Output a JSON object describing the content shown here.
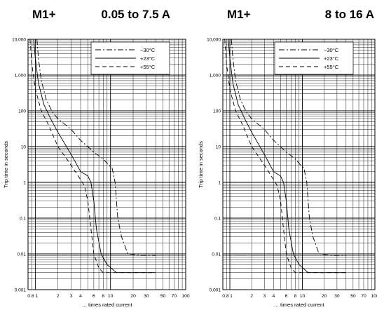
{
  "charts_colors": {
    "line": "#000000",
    "grid": "#000000",
    "background": "#ffffff"
  },
  "chart_data": [
    {
      "type": "line",
      "title": "M1+",
      "subtitle": "0.05 to 7.5 A",
      "xlabel": "… times rated current",
      "ylabel": "Trip time in seconds",
      "x_scale": "log",
      "y_scale": "log",
      "xlim": [
        0.8,
        100
      ],
      "ylim": [
        0.001,
        10000
      ],
      "x_ticks": [
        "0.8",
        "1",
        "2",
        "3",
        "4",
        "6",
        "8",
        "10",
        "20",
        "30",
        "50",
        "70",
        "100"
      ],
      "y_ticks": [
        "0.001",
        "0.01",
        "0.1",
        "1",
        "10",
        "100",
        "1,000",
        "10,000"
      ],
      "grid": true,
      "legend_position": "top-right",
      "series": [
        {
          "name": "−30°C",
          "style": "dash-dot",
          "x": [
            1.05,
            1.1,
            1.2,
            1.4,
            1.7,
            2.0,
            3.0,
            4.0,
            6.0,
            8.0,
            9.5,
            10.5,
            11.5,
            12.5,
            14.0,
            17.0,
            25.0,
            40.0
          ],
          "y": [
            10000,
            3000,
            700,
            200,
            90,
            60,
            30,
            15,
            7,
            4.5,
            3,
            2.5,
            1,
            0.1,
            0.03,
            0.01,
            0.009,
            0.009
          ]
        },
        {
          "name": "+23°C",
          "style": "solid",
          "x": [
            0.95,
            1.0,
            1.1,
            1.3,
            1.6,
            2.0,
            3.0,
            4.0,
            5.0,
            5.5,
            6.0,
            6.5,
            7.5,
            9.0,
            12.0,
            20.0,
            40.0
          ],
          "y": [
            10000,
            3000,
            600,
            150,
            60,
            25,
            6,
            2,
            1.5,
            1,
            0.3,
            0.05,
            0.01,
            0.005,
            0.003,
            0.003,
            0.003
          ]
        },
        {
          "name": "+55°C",
          "style": "dashed",
          "x": [
            0.85,
            0.9,
            1.0,
            1.2,
            1.5,
            2.0,
            3.0,
            4.0,
            4.5,
            5.0,
            5.5,
            6.0,
            7.0,
            8.0,
            10.0,
            20.0,
            40.0
          ],
          "y": [
            10000,
            2000,
            400,
            100,
            40,
            10,
            3,
            1.2,
            0.8,
            0.3,
            0.05,
            0.01,
            0.004,
            0.003,
            0.003,
            0.003,
            0.003
          ]
        }
      ]
    },
    {
      "type": "line",
      "title": "M1+",
      "subtitle": "8 to 16 A",
      "xlabel": "… times rated current",
      "ylabel": "Trip time in seconds",
      "x_scale": "log",
      "y_scale": "log",
      "xlim": [
        0.8,
        100
      ],
      "ylim": [
        0.001,
        10000
      ],
      "x_ticks": [
        "0.8",
        "1",
        "2",
        "3",
        "4",
        "6",
        "8",
        "10",
        "20",
        "30",
        "50",
        "70",
        "100"
      ],
      "y_ticks": [
        "0.001",
        "0.01",
        "0.1",
        "1",
        "10",
        "100",
        "1,000",
        "10,000"
      ],
      "grid": true,
      "legend_position": "top-right",
      "series": [
        {
          "name": "−30°C",
          "style": "dash-dot",
          "x": [
            1.05,
            1.1,
            1.2,
            1.4,
            1.7,
            2.0,
            3.0,
            4.0,
            6.0,
            8.0,
            9.5,
            10.5,
            11.5,
            12.5,
            14.0,
            17.0,
            25.0,
            40.0
          ],
          "y": [
            10000,
            3000,
            700,
            200,
            90,
            60,
            30,
            15,
            7,
            4.5,
            3,
            2.5,
            1,
            0.1,
            0.03,
            0.01,
            0.009,
            0.009
          ]
        },
        {
          "name": "+23°C",
          "style": "solid",
          "x": [
            0.95,
            1.0,
            1.1,
            1.3,
            1.6,
            2.0,
            3.0,
            4.0,
            5.0,
            5.5,
            6.0,
            6.5,
            7.5,
            9.0,
            12.0,
            20.0,
            40.0
          ],
          "y": [
            10000,
            3000,
            600,
            150,
            60,
            25,
            6,
            2,
            1.5,
            1,
            0.3,
            0.05,
            0.01,
            0.005,
            0.003,
            0.003,
            0.003
          ]
        },
        {
          "name": "+55°C",
          "style": "dashed",
          "x": [
            0.85,
            0.9,
            1.0,
            1.2,
            1.5,
            2.0,
            3.0,
            4.0,
            4.5,
            5.0,
            5.5,
            6.0,
            7.0,
            8.0,
            10.0,
            20.0,
            40.0
          ],
          "y": [
            10000,
            2000,
            400,
            100,
            40,
            10,
            3,
            1.2,
            0.8,
            0.3,
            0.05,
            0.01,
            0.004,
            0.003,
            0.003,
            0.003,
            0.003
          ]
        }
      ]
    }
  ]
}
